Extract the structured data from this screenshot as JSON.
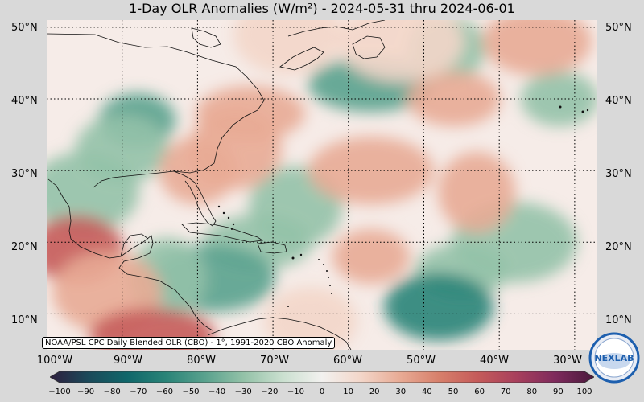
{
  "title": "1-Day OLR Anomalies (W/m²) - 2024-05-31 thru 2024-06-01",
  "lat_labels": [
    "50°N",
    "40°N",
    "30°N",
    "20°N",
    "10°N"
  ],
  "lon_labels": [
    "100°W",
    "90°W",
    "80°W",
    "70°W",
    "60°W",
    "50°W",
    "40°W",
    "30°W"
  ],
  "colorbar": {
    "ticks": [
      "−100",
      "−90",
      "−80",
      "−70",
      "−60",
      "−50",
      "−40",
      "−30",
      "−20",
      "−10",
      "0",
      "10",
      "20",
      "30",
      "40",
      "50",
      "60",
      "70",
      "80",
      "90",
      "100"
    ],
    "range": [
      -100,
      100
    ],
    "colors": [
      "#2e1f3e",
      "#1b4a5a",
      "#10676a",
      "#2a8478",
      "#5aa28e",
      "#94c2a8",
      "#cbe0d0",
      "#f2f1ef",
      "#f3d6c9",
      "#e8ab95",
      "#d7806b",
      "#c55b5a",
      "#a8405c",
      "#7e2a5c",
      "#4a1a3c"
    ]
  },
  "source_label": "NOAA/PSL CPC Daily Blended OLR (CBO) - 1°, 1991-2020 CBO Anomaly",
  "logo": {
    "text": "NEXLAB",
    "colors": [
      "#1d5fae",
      "#e9edf5"
    ]
  },
  "map": {
    "lon_range": [
      -100,
      -27
    ],
    "lat_range": [
      5,
      51
    ],
    "background": "#f6ece8",
    "grid_lons": [
      -100,
      -90,
      -80,
      -70,
      -60,
      -50,
      -40,
      -30
    ],
    "grid_lats": [
      10,
      20,
      30,
      40,
      50
    ],
    "anomaly_patches": [
      {
        "lon": -88,
        "lat": 37,
        "value": -40
      },
      {
        "lon": -90,
        "lat": 33,
        "value": -35
      },
      {
        "lon": -95,
        "lat": 27,
        "value": -30
      },
      {
        "lon": -57,
        "lat": 42,
        "value": -45
      },
      {
        "lon": -47,
        "lat": 47,
        "value": -25
      },
      {
        "lon": -67,
        "lat": 25,
        "value": -30
      },
      {
        "lon": -72,
        "lat": 20,
        "value": -35
      },
      {
        "lon": -78,
        "lat": 15,
        "value": -45
      },
      {
        "lon": -84,
        "lat": 15,
        "value": -35
      },
      {
        "lon": -45,
        "lat": 16,
        "value": -35
      },
      {
        "lon": -48,
        "lat": 11,
        "value": -55
      },
      {
        "lon": -38,
        "lat": 20,
        "value": -30
      },
      {
        "lon": -32,
        "lat": 40,
        "value": -30
      },
      {
        "lon": -96,
        "lat": 19,
        "value": 50
      },
      {
        "lon": -92,
        "lat": 13,
        "value": 25
      },
      {
        "lon": -86,
        "lat": 7,
        "value": 60
      },
      {
        "lon": -80,
        "lat": 30,
        "value": 30
      },
      {
        "lon": -75,
        "lat": 33,
        "value": 35
      },
      {
        "lon": -73,
        "lat": 38,
        "value": 35
      },
      {
        "lon": -57,
        "lat": 30,
        "value": 30
      },
      {
        "lon": -43,
        "lat": 27,
        "value": 35
      },
      {
        "lon": -46,
        "lat": 40,
        "value": 25
      },
      {
        "lon": -35,
        "lat": 48,
        "value": 25
      },
      {
        "lon": -53,
        "lat": 48,
        "value": 20
      },
      {
        "lon": -57,
        "lat": 18,
        "value": 25
      },
      {
        "lon": -65,
        "lat": 9,
        "value": 20
      },
      {
        "lon": -68,
        "lat": 49,
        "value": 15
      }
    ]
  }
}
